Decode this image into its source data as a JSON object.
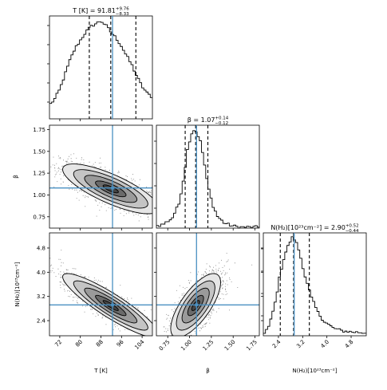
{
  "chart_data": {
    "type": "corner",
    "truth_color": "#4a90c2",
    "parameters": [
      {
        "id": "T",
        "label": "T [K]",
        "range": [
          68,
          108
        ],
        "ticks": [
          "72",
          "80",
          "88",
          "96",
          "104"
        ],
        "tick_values": [
          72,
          80,
          88,
          96,
          104
        ],
        "median": 91.81,
        "lower": 83.48,
        "upper": 101.57,
        "truth": 92.5,
        "title_main": "T [K] = 91.81",
        "title_sup": "+9.76",
        "title_sub": "−8.33",
        "hist_x": [
          68,
          70,
          72,
          74,
          76,
          78,
          80,
          82,
          84,
          86,
          88,
          90,
          92,
          94,
          96,
          98,
          100,
          102,
          104,
          106,
          108
        ],
        "hist_y": [
          0.14,
          0.2,
          0.3,
          0.45,
          0.6,
          0.72,
          0.8,
          0.88,
          0.94,
          0.97,
          1.0,
          0.95,
          0.88,
          0.82,
          0.74,
          0.64,
          0.55,
          0.43,
          0.33,
          0.26,
          0.22
        ]
      },
      {
        "id": "beta",
        "label": "β",
        "range": [
          0.62,
          1.8
        ],
        "ticks": [
          "0.75",
          "1.00",
          "1.25",
          "1.50",
          "1.75"
        ],
        "tick_values": [
          0.75,
          1.0,
          1.25,
          1.5,
          1.75
        ],
        "median": 1.07,
        "lower": 0.95,
        "upper": 1.21,
        "truth": 1.08,
        "title_main": "β = 1.07",
        "title_sup": "+0.14",
        "title_sub": "−0.12",
        "hist_x": [
          0.62,
          0.7,
          0.8,
          0.88,
          0.94,
          0.98,
          1.02,
          1.05,
          1.08,
          1.12,
          1.16,
          1.2,
          1.26,
          1.32,
          1.4,
          1.5,
          1.6,
          1.8
        ],
        "hist_y": [
          0.02,
          0.04,
          0.1,
          0.25,
          0.55,
          0.82,
          0.96,
          1.0,
          0.98,
          0.9,
          0.72,
          0.48,
          0.25,
          0.12,
          0.05,
          0.02,
          0.01,
          0.01
        ]
      },
      {
        "id": "NH2",
        "label": "N(H₂)[10²³cm⁻²]",
        "range": [
          1.9,
          5.3
        ],
        "ticks": [
          "2.4",
          "3.2",
          "4.0",
          "4.8"
        ],
        "tick_values": [
          2.4,
          3.2,
          4.0,
          4.8
        ],
        "median": 2.9,
        "lower": 2.46,
        "upper": 3.42,
        "truth": 2.92,
        "title_main": "N(H₂)[10²³cm⁻²] = 2.90",
        "title_sup": "+0.52",
        "title_sub": "−0.44",
        "hist_x": [
          1.9,
          2.1,
          2.3,
          2.45,
          2.6,
          2.75,
          2.85,
          2.95,
          3.05,
          3.15,
          3.3,
          3.5,
          3.7,
          3.9,
          4.2,
          4.5,
          4.8,
          5.3
        ],
        "hist_y": [
          0.02,
          0.1,
          0.35,
          0.62,
          0.82,
          0.94,
          1.0,
          0.98,
          0.9,
          0.78,
          0.58,
          0.38,
          0.24,
          0.15,
          0.08,
          0.05,
          0.04,
          0.03
        ]
      }
    ]
  }
}
